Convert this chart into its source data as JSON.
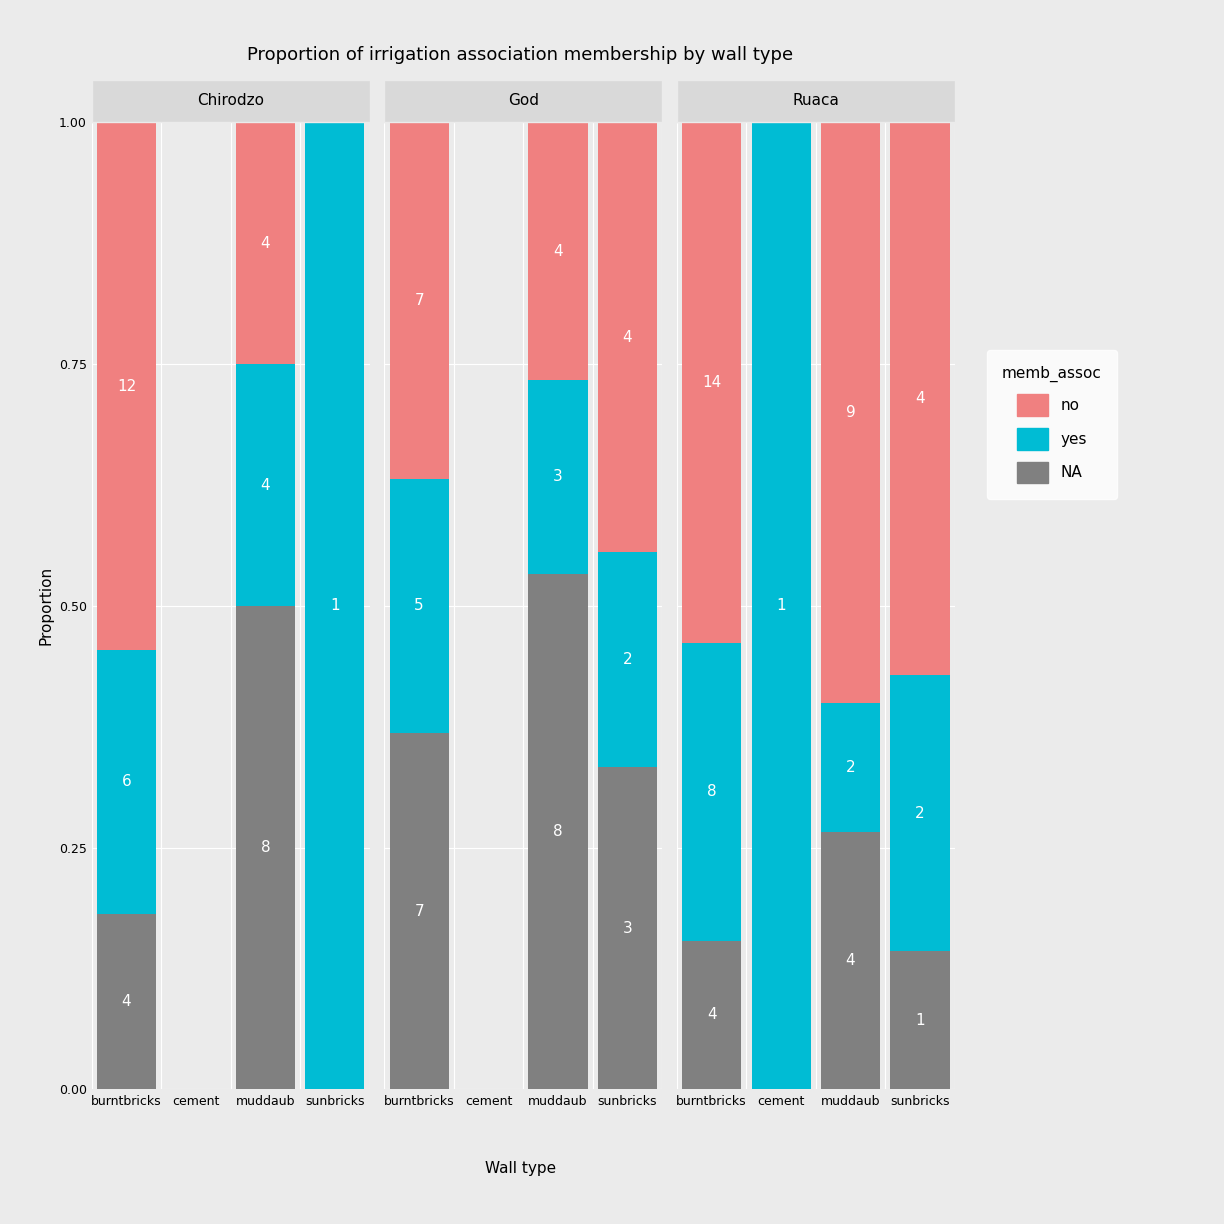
{
  "title": "Proportion of irrigation association membership by wall type",
  "xlabel": "Wall type",
  "ylabel": "Proportion",
  "facets": [
    "Chirodzo",
    "God",
    "Ruaca"
  ],
  "wall_types": [
    "burntbricks",
    "cement",
    "muddaub",
    "sunbricks"
  ],
  "colors": {
    "no": "#F08080",
    "yes": "#00BCD4",
    "NA": "#808080"
  },
  "legend_title": "memb_assoc",
  "data": {
    "Chirodzo": {
      "burntbricks": {
        "NA": 4,
        "yes": 6,
        "no": 12
      },
      "cement": {
        "NA": 0,
        "yes": 0,
        "no": 0
      },
      "muddaub": {
        "NA": 8,
        "yes": 4,
        "no": 4
      },
      "sunbricks": {
        "NA": 0,
        "yes": 1,
        "no": 0
      }
    },
    "God": {
      "burntbricks": {
        "NA": 7,
        "yes": 5,
        "no": 7
      },
      "cement": {
        "NA": 0,
        "yes": 0,
        "no": 0
      },
      "muddaub": {
        "NA": 8,
        "yes": 3,
        "no": 4
      },
      "sunbricks": {
        "NA": 3,
        "yes": 2,
        "no": 4
      }
    },
    "Ruaca": {
      "burntbricks": {
        "NA": 4,
        "yes": 8,
        "no": 14
      },
      "cement": {
        "NA": 0,
        "yes": 1,
        "no": 0
      },
      "muddaub": {
        "NA": 4,
        "yes": 2,
        "no": 9
      },
      "sunbricks": {
        "NA": 1,
        "yes": 2,
        "no": 4
      }
    }
  },
  "bg_color": "#EBEBEB",
  "panel_bg": "#EBEBEB",
  "facet_header_bg": "#D9D9D9",
  "grid_color": "#FFFFFF",
  "bar_width": 0.85,
  "font_size": 11,
  "label_font_size": 11,
  "title_font_size": 13,
  "tick_font_size": 9
}
